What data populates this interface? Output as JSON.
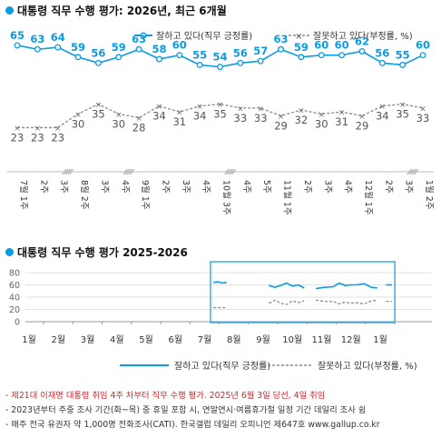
{
  "chart_data": [
    {
      "type": "line",
      "title": "대통령 직무 수행 평가: 2026년, 최근 6개월",
      "categories": [
        "7월 1주",
        "2주",
        "3주",
        "8월 2주",
        "3주",
        "4주",
        "9월 1주",
        "2주",
        "3주",
        "4주",
        "10월 3주",
        "4주",
        "5주",
        "11월 1주",
        "2주",
        "3주",
        "4주",
        "12월 1주",
        "2주",
        "3주",
        "1월 2주"
      ],
      "break_after_index": [
        2,
        5,
        10,
        19
      ],
      "series": [
        {
          "name": "잘하고 있다(직무 긍정률)",
          "color": "#0a9be0",
          "style": "solid",
          "values": [
            65,
            63,
            64,
            59,
            56,
            59,
            63,
            58,
            60,
            55,
            54,
            56,
            57,
            63,
            59,
            60,
            60,
            62,
            56,
            55,
            60
          ]
        },
        {
          "name": "잘못하고 있다(부정률, %)",
          "color": "#8a8a8a",
          "style": "dashed",
          "values": [
            23,
            23,
            23,
            30,
            35,
            30,
            28,
            34,
            31,
            34,
            35,
            33,
            33,
            29,
            32,
            30,
            31,
            29,
            34,
            35,
            33
          ]
        }
      ]
    },
    {
      "type": "line",
      "title": "대통령 직무 수행 평가 2025-2026",
      "categories": [
        "1월",
        "2월",
        "3월",
        "4월",
        "5월",
        "6월",
        "7월",
        "8월",
        "9월",
        "10월",
        "11월",
        "12월",
        "1월"
      ],
      "ylim": [
        0,
        80
      ],
      "yticks": [
        0,
        20,
        40,
        60,
        80
      ],
      "series": [
        {
          "name": "잘하고 있다(직무 긍정률)",
          "color": "#0a9be0",
          "style": "solid",
          "segments": [
            [
              [
                6.3,
                64
              ],
              [
                6.45,
                65
              ],
              [
                6.6,
                63
              ],
              [
                6.75,
                64
              ]
            ],
            [
              [
                8.2,
                59
              ],
              [
                8.4,
                56
              ],
              [
                8.6,
                59
              ],
              [
                8.8,
                63
              ],
              [
                9.0,
                58
              ],
              [
                9.2,
                60
              ],
              [
                9.4,
                55
              ]
            ],
            [
              [
                9.8,
                54
              ],
              [
                10.1,
                56
              ],
              [
                10.4,
                57
              ],
              [
                10.6,
                63
              ],
              [
                10.8,
                59
              ],
              [
                11.0,
                60
              ],
              [
                11.2,
                60
              ],
              [
                11.45,
                62
              ],
              [
                11.7,
                56
              ],
              [
                11.9,
                55
              ]
            ],
            [
              [
                12.2,
                60
              ],
              [
                12.4,
                60
              ]
            ]
          ]
        },
        {
          "name": "잘못하고 있다(부정률, %)",
          "color": "#8a8a8a",
          "style": "dashed",
          "segments": [
            [
              [
                6.3,
                23
              ],
              [
                6.45,
                23
              ],
              [
                6.6,
                23
              ],
              [
                6.75,
                23
              ]
            ],
            [
              [
                8.2,
                30
              ],
              [
                8.4,
                35
              ],
              [
                8.6,
                30
              ],
              [
                8.8,
                28
              ],
              [
                9.0,
                34
              ],
              [
                9.2,
                31
              ],
              [
                9.4,
                34
              ]
            ],
            [
              [
                9.8,
                35
              ],
              [
                10.1,
                33
              ],
              [
                10.4,
                33
              ],
              [
                10.6,
                29
              ],
              [
                10.8,
                32
              ],
              [
                11.0,
                30
              ],
              [
                11.2,
                31
              ],
              [
                11.45,
                29
              ],
              [
                11.7,
                34
              ],
              [
                11.9,
                35
              ]
            ],
            [
              [
                12.2,
                33
              ],
              [
                12.4,
                33
              ]
            ]
          ]
        }
      ],
      "highlight_range": [
        6.2,
        12.5
      ]
    }
  ],
  "legend": {
    "positive": "잘하고 있다(직무 긍정률)",
    "negative": "잘못하고 있다(부정률, %)"
  },
  "notes": [
    "- 제21대 이재명 대통령 취임 4주 차부터 직무 수행 평가. 2025년 6월 3일 당선, 4일 취임",
    "- 2023년부터 주중 조사 기간(화~목) 중 휴일 포함 시, 연말연시·여름휴가철 일정 기간 데일리 조사 쉼",
    "- 매주 전국 유권자 약 1,000명 전화조사(CATI). 한국갤럽 데일리 오피니언 제647호 www.gallup.co.kr"
  ],
  "colors": {
    "positive": "#0a9be0",
    "negative": "#8a8a8a",
    "highlight_box": "#1aa3e8"
  }
}
